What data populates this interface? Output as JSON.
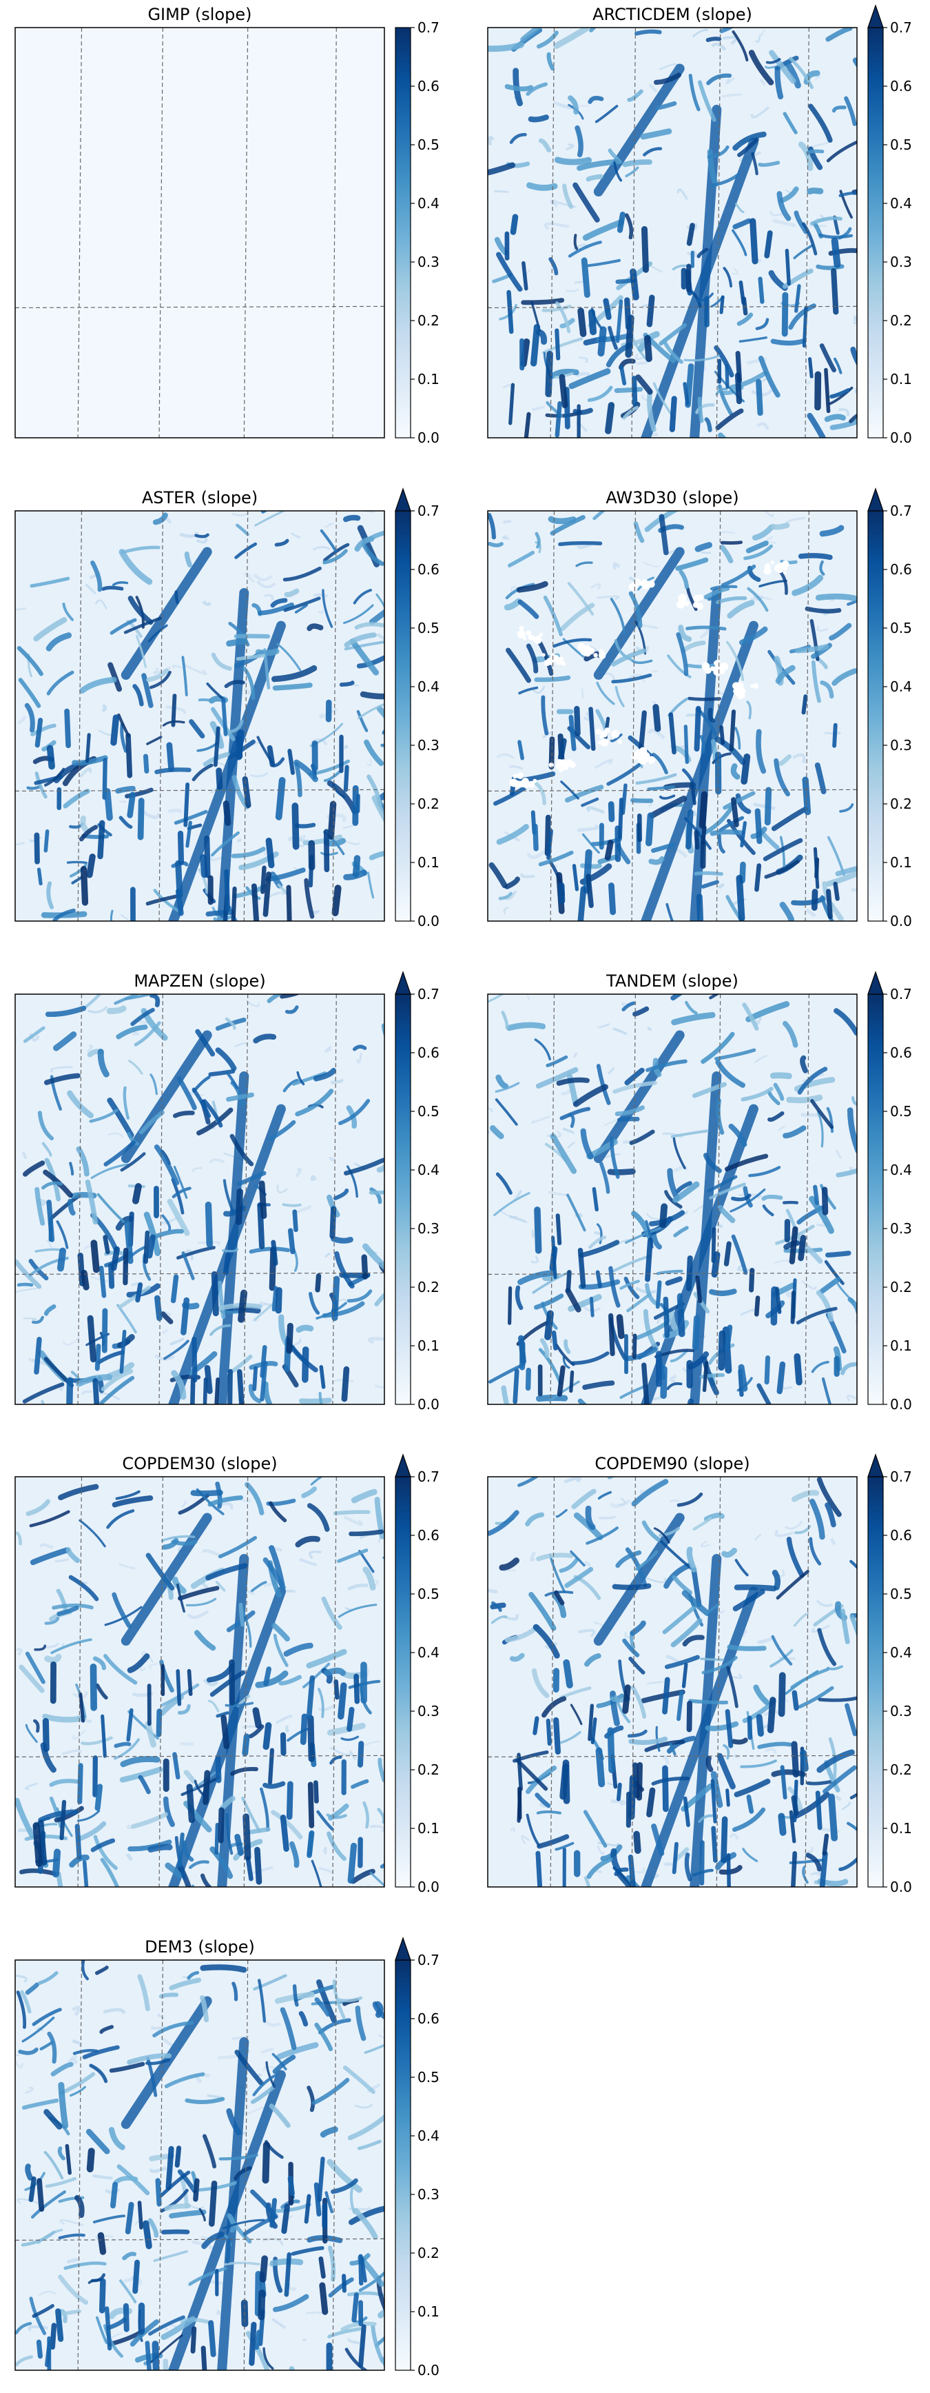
{
  "figure": {
    "colormap": "Blues",
    "colormap_stops": [
      "#f7fbff",
      "#deebf7",
      "#c6dbef",
      "#9ecae1",
      "#6baed6",
      "#4292c6",
      "#2171b5",
      "#08519c",
      "#08306b"
    ],
    "colorbar_ticks": [
      "0.0",
      "0.1",
      "0.2",
      "0.3",
      "0.4",
      "0.5",
      "0.6",
      "0.7"
    ],
    "grid": "dashed"
  },
  "chart_data": [
    {
      "type": "heatmap",
      "title": "GIMP (slope)",
      "vmin": 0.0,
      "vmax": 0.7,
      "extend": "none",
      "field": "uniform-low",
      "grid": true
    },
    {
      "type": "heatmap",
      "title": "ARCTICDEM (slope)",
      "vmin": 0.0,
      "vmax": 0.7,
      "extend": "max",
      "field": "terrain",
      "grid": true
    },
    {
      "type": "heatmap",
      "title": "ASTER (slope)",
      "vmin": 0.0,
      "vmax": 0.7,
      "extend": "max",
      "field": "terrain",
      "grid": true
    },
    {
      "type": "heatmap",
      "title": "AW3D30 (slope)",
      "vmin": 0.0,
      "vmax": 0.7,
      "extend": "max",
      "field": "terrain-with-voids",
      "grid": true
    },
    {
      "type": "heatmap",
      "title": "MAPZEN (slope)",
      "vmin": 0.0,
      "vmax": 0.7,
      "extend": "max",
      "field": "terrain",
      "grid": true
    },
    {
      "type": "heatmap",
      "title": "TANDEM (slope)",
      "vmin": 0.0,
      "vmax": 0.7,
      "extend": "max",
      "field": "terrain",
      "grid": true
    },
    {
      "type": "heatmap",
      "title": "COPDEM30 (slope)",
      "vmin": 0.0,
      "vmax": 0.7,
      "extend": "max",
      "field": "terrain",
      "grid": true
    },
    {
      "type": "heatmap",
      "title": "COPDEM90 (slope)",
      "vmin": 0.0,
      "vmax": 0.7,
      "extend": "max",
      "field": "terrain",
      "grid": true
    },
    {
      "type": "heatmap",
      "title": "DEM3 (slope)",
      "vmin": 0.0,
      "vmax": 0.7,
      "extend": "max",
      "field": "terrain",
      "grid": true
    }
  ]
}
